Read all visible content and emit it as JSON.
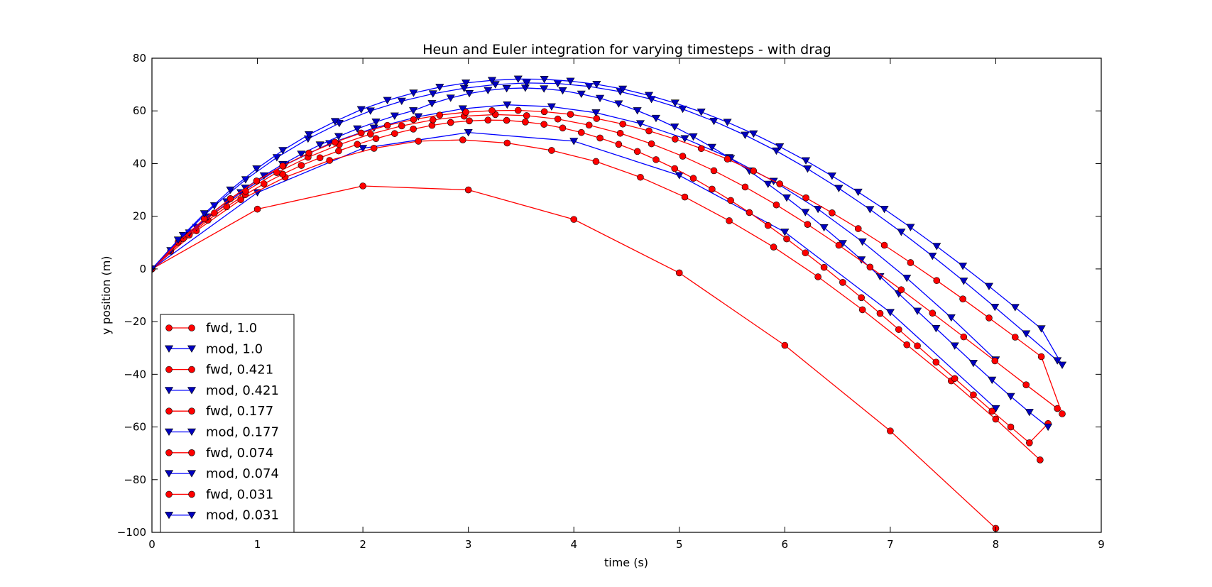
{
  "chart_data": {
    "type": "line",
    "title": "Heun and Euler integration for varying timesteps - with drag",
    "xlabel": "time (s)",
    "ylabel": "y position (m)",
    "xlim": [
      0,
      9
    ],
    "ylim": [
      -100,
      80
    ],
    "xticks": [
      0,
      1,
      2,
      3,
      4,
      5,
      6,
      7,
      8,
      9
    ],
    "yticks": [
      -100,
      -80,
      -60,
      -40,
      -20,
      0,
      20,
      40,
      60,
      80
    ],
    "xtick_labels": [
      "0",
      "1",
      "2",
      "3",
      "4",
      "5",
      "6",
      "7",
      "8",
      "9"
    ],
    "ytick_labels": [
      "−100",
      "−80",
      "−60",
      "−40",
      "−20",
      "0",
      "20",
      "40",
      "60",
      "80"
    ],
    "grid": false,
    "legend_position": "bottom-left",
    "colors": {
      "fwd": "#ff0000",
      "mod": "#0000ff",
      "fwd_marker": "#ff0000",
      "mod_marker": "#0000bf"
    },
    "series": [
      {
        "name": "fwd, 1.0",
        "method": "fwd",
        "marker": "circle",
        "x": [
          0,
          1,
          2,
          3,
          4,
          5,
          6,
          7,
          8
        ],
        "y": [
          0,
          22.7,
          31.5,
          30.0,
          18.8,
          -1.5,
          -29.0,
          -61.5,
          -98.5
        ]
      },
      {
        "name": "mod, 1.0",
        "method": "mod",
        "marker": "triangle-down",
        "x": [
          0,
          1,
          2,
          3,
          4,
          5,
          6,
          7,
          8
        ],
        "y": [
          0,
          29.0,
          45.8,
          51.8,
          48.5,
          35.5,
          14.0,
          -16.5,
          -53.0
        ]
      },
      {
        "name": "fwd, 0.421",
        "method": "fwd",
        "marker": "circle",
        "x": [
          0,
          0.421,
          0.842,
          1.263,
          1.684,
          2.105,
          2.526,
          2.947,
          3.368,
          3.789,
          4.21,
          4.631,
          5.052,
          5.473,
          5.894,
          6.315,
          6.736,
          7.157,
          7.578,
          7.999,
          8.42
        ],
        "y": [
          0,
          14.5,
          26.3,
          34.8,
          41.2,
          45.8,
          48.5,
          49.0,
          47.8,
          45.0,
          40.8,
          34.8,
          27.3,
          18.3,
          8.3,
          -3.0,
          -15.5,
          -28.8,
          -42.5,
          -57.0,
          -72.5
        ]
      },
      {
        "name": "mod, 0.421",
        "method": "mod",
        "marker": "triangle-down",
        "x": [
          0,
          0.421,
          0.842,
          1.263,
          1.684,
          2.105,
          2.526,
          2.947,
          3.368,
          3.789,
          4.21,
          4.631,
          5.052,
          5.473,
          5.894,
          6.315,
          6.736,
          7.157,
          7.578,
          7.999
        ],
        "y": [
          0,
          15.8,
          29.0,
          39.5,
          47.6,
          53.5,
          57.8,
          60.8,
          62.3,
          61.6,
          59.3,
          55.2,
          49.5,
          42.3,
          33.3,
          22.7,
          10.3,
          -3.5,
          -18.5,
          -34.5
        ]
      },
      {
        "name": "fwd, 0.177",
        "method": "fwd",
        "marker": "circle",
        "x": [
          0,
          0.177,
          0.354,
          0.531,
          0.708,
          0.885,
          1.062,
          1.239,
          1.416,
          1.593,
          1.77,
          1.947,
          2.124,
          2.301,
          2.478,
          2.655,
          2.832,
          3.009,
          3.186,
          3.363,
          3.54,
          3.717,
          3.894,
          4.071,
          4.248,
          4.425,
          4.602,
          4.779,
          4.956,
          5.133,
          5.31,
          5.487,
          5.664,
          5.841,
          6.018,
          6.195,
          6.372,
          6.549,
          6.726,
          6.903,
          7.08,
          7.257,
          7.434,
          7.611,
          7.788,
          7.965,
          8.142,
          8.319,
          8.496
        ],
        "y": [
          0,
          6.75,
          12.9,
          18.5,
          23.6,
          28.2,
          32.3,
          36.0,
          39.3,
          42.2,
          44.8,
          47.3,
          49.5,
          51.4,
          53.1,
          54.5,
          55.6,
          56.2,
          56.5,
          56.4,
          55.8,
          54.9,
          53.5,
          51.8,
          49.7,
          47.3,
          44.6,
          41.5,
          38.1,
          34.4,
          30.3,
          26.0,
          21.4,
          16.5,
          11.4,
          6.1,
          0.6,
          -5.1,
          -10.9,
          -16.9,
          -23.0,
          -29.2,
          -35.4,
          -41.6,
          -47.8,
          -54.0,
          -60.0,
          -66.0,
          -58.7
        ]
      },
      {
        "name": "mod, 0.177",
        "method": "mod",
        "marker": "triangle-down",
        "x": [
          0,
          0.177,
          0.354,
          0.531,
          0.708,
          0.885,
          1.062,
          1.239,
          1.416,
          1.593,
          1.77,
          1.947,
          2.124,
          2.301,
          2.478,
          2.655,
          2.832,
          3.009,
          3.186,
          3.363,
          3.54,
          3.717,
          3.894,
          4.071,
          4.248,
          4.425,
          4.602,
          4.779,
          4.956,
          5.133,
          5.31,
          5.487,
          5.664,
          5.841,
          6.018,
          6.195,
          6.372,
          6.549,
          6.726,
          6.903,
          7.08,
          7.257,
          7.434,
          7.611,
          7.788,
          7.965,
          8.142,
          8.319,
          8.496
        ],
        "y": [
          0,
          7.0,
          13.7,
          19.8,
          25.5,
          30.7,
          35.4,
          39.7,
          43.6,
          47.1,
          50.3,
          53.2,
          55.8,
          58.1,
          60.1,
          62.8,
          64.9,
          66.6,
          67.8,
          68.5,
          68.7,
          68.4,
          67.7,
          66.4,
          64.8,
          62.7,
          60.1,
          57.2,
          53.9,
          50.2,
          46.2,
          41.9,
          37.2,
          32.2,
          27.0,
          21.5,
          15.7,
          9.7,
          3.5,
          -2.9,
          -9.4,
          -16.0,
          -22.6,
          -29.2,
          -35.8,
          -42.2,
          -48.4,
          -54.4,
          -60.0
        ]
      },
      {
        "name": "fwd, 0.074",
        "method": "fwd",
        "marker": "circle",
        "x": [
          0,
          0.296,
          0.592,
          0.888,
          1.184,
          1.48,
          1.776,
          2.072,
          2.368,
          2.664,
          2.96,
          3.256,
          3.552,
          3.848,
          4.144,
          4.44,
          4.736,
          5.032,
          5.328,
          5.624,
          5.92,
          6.216,
          6.512,
          6.808,
          7.104,
          7.4,
          7.696,
          7.992,
          8.288,
          8.584
        ],
        "y": [
          0,
          11.5,
          21.2,
          29.5,
          36.6,
          42.4,
          47.2,
          51.2,
          54.3,
          56.6,
          58.0,
          58.6,
          58.2,
          56.9,
          54.6,
          51.5,
          47.5,
          42.8,
          37.3,
          31.1,
          24.3,
          16.9,
          9.0,
          0.7,
          -7.9,
          -16.8,
          -25.8,
          -34.9,
          -44.0,
          -53.0
        ]
      },
      {
        "name": "mod, 0.074",
        "method": "mod",
        "marker": "triangle-down",
        "x": [
          0,
          0.296,
          0.592,
          0.888,
          1.184,
          1.48,
          1.776,
          2.072,
          2.368,
          2.664,
          2.96,
          3.256,
          3.552,
          3.848,
          4.144,
          4.44,
          4.736,
          5.032,
          5.328,
          5.624,
          5.92,
          6.216,
          6.512,
          6.808,
          7.104,
          7.4,
          7.696,
          7.992,
          8.288,
          8.584
        ],
        "y": [
          0,
          12.7,
          24.0,
          33.9,
          42.3,
          49.4,
          55.3,
          60.0,
          63.7,
          66.5,
          68.6,
          70.0,
          70.6,
          70.4,
          69.3,
          67.3,
          64.4,
          60.7,
          56.1,
          50.8,
          44.8,
          38.0,
          30.6,
          22.6,
          14.0,
          4.9,
          -4.6,
          -14.5,
          -24.6,
          -34.8
        ]
      },
      {
        "name": "fwd, 0.031",
        "method": "fwd",
        "marker": "circle",
        "x": [
          0,
          0.248,
          0.496,
          0.744,
          0.992,
          1.24,
          1.488,
          1.736,
          1.984,
          2.232,
          2.48,
          2.728,
          2.976,
          3.224,
          3.472,
          3.72,
          3.968,
          4.216,
          4.464,
          4.712,
          4.96,
          5.208,
          5.456,
          5.704,
          5.952,
          6.2,
          6.448,
          6.696,
          6.944,
          7.192,
          7.44,
          7.688,
          7.936,
          8.184,
          8.432,
          8.63
        ],
        "y": [
          0,
          10.2,
          19.0,
          26.7,
          33.4,
          39.1,
          44.0,
          48.1,
          51.6,
          54.5,
          56.7,
          58.4,
          59.5,
          60.1,
          60.2,
          59.7,
          58.7,
          57.1,
          55.0,
          52.4,
          49.3,
          45.7,
          41.7,
          37.2,
          32.3,
          27.0,
          21.3,
          15.3,
          9.0,
          2.4,
          -4.4,
          -11.4,
          -18.6,
          -25.9,
          -33.3,
          -55.0
        ]
      },
      {
        "name": "mod, 0.031",
        "method": "mod",
        "marker": "triangle-down",
        "x": [
          0,
          0.248,
          0.496,
          0.744,
          0.992,
          1.24,
          1.488,
          1.736,
          1.984,
          2.232,
          2.48,
          2.728,
          2.976,
          3.224,
          3.472,
          3.72,
          3.968,
          4.216,
          4.464,
          4.712,
          4.96,
          5.208,
          5.456,
          5.704,
          5.952,
          6.2,
          6.448,
          6.696,
          6.944,
          7.192,
          7.44,
          7.688,
          7.936,
          8.184,
          8.432,
          8.63
        ],
        "y": [
          0,
          11.0,
          21.0,
          30.0,
          38.0,
          45.0,
          51.0,
          56.0,
          60.5,
          64.0,
          66.8,
          69.0,
          70.6,
          71.6,
          72.1,
          72.0,
          71.3,
          70.1,
          68.3,
          65.9,
          63.0,
          59.6,
          55.7,
          51.3,
          46.4,
          41.1,
          35.3,
          29.2,
          22.7,
          15.8,
          8.6,
          1.1,
          -6.6,
          -14.6,
          -22.7,
          -36.5
        ]
      }
    ]
  }
}
